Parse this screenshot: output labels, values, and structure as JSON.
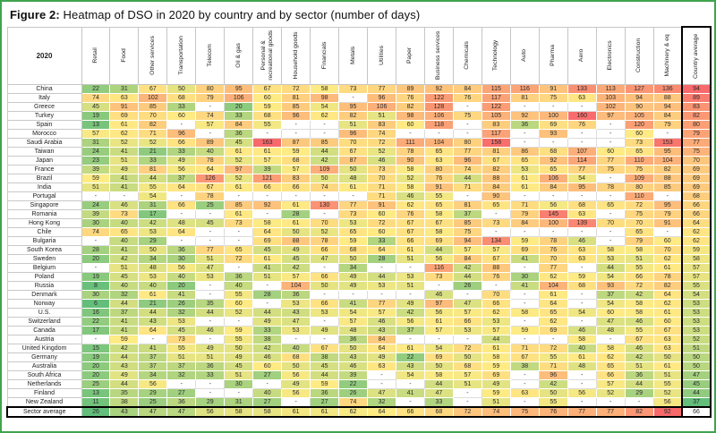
{
  "title": {
    "prefix": "Figure 2:",
    "text": " Heatmap of DSO in 2020 by country and by sector (number of days)"
  },
  "chart_data": {
    "type": "heatmap",
    "title": "Heatmap of DSO in 2020 by country and by sector (number of days)",
    "corner_label": "2020",
    "missing_marker": "-",
    "columns": [
      "Retail",
      "Food",
      "Other services",
      "Transportation",
      "Telecom",
      "Oil & gas",
      "Personal & recreational goods",
      "Household goods",
      "Financials",
      "Metals",
      "Utilities",
      "Paper",
      "Business services",
      "Chemicals",
      "Technology",
      "Auto",
      "Pharma",
      "Aero",
      "Electronics",
      "Construction",
      "Machinery & eq"
    ],
    "country_average_column": "Country average",
    "rows": [
      {
        "country": "China",
        "values": [
          22,
          31,
          67,
          50,
          80,
          95,
          67,
          72,
          58,
          73,
          77,
          89,
          92,
          84,
          115,
          116,
          91,
          133,
          113,
          127,
          136
        ],
        "country_average": 94
      },
      {
        "country": "Italy",
        "values": [
          74,
          63,
          102,
          68,
          79,
          106,
          60,
          81,
          98,
          null,
          96,
          76,
          122,
          76,
          117,
          81,
          75,
          63,
          103,
          94,
          88
        ],
        "country_average": 89
      },
      {
        "country": "Greece",
        "values": [
          45,
          91,
          85,
          33,
          null,
          20,
          59,
          85,
          54,
          95,
          106,
          82,
          128,
          null,
          122,
          null,
          null,
          null,
          102,
          90,
          94
        ],
        "country_average": 83
      },
      {
        "country": "Turkey",
        "values": [
          19,
          69,
          70,
          60,
          74,
          33,
          68,
          96,
          62,
          82,
          51,
          98,
          106,
          75,
          105,
          92,
          100,
          160,
          97,
          105,
          84
        ],
        "country_average": 82
      },
      {
        "country": "Spain",
        "values": [
          13,
          61,
          82,
          null,
          57,
          84,
          55,
          null,
          null,
          51,
          83,
          60,
          118,
          null,
          83,
          36,
          69,
          76,
          null,
          120,
          79
        ],
        "country_average": 80
      },
      {
        "country": "Morocco",
        "values": [
          57,
          62,
          71,
          96,
          null,
          36,
          null,
          null,
          null,
          96,
          74,
          null,
          null,
          null,
          117,
          null,
          93,
          null,
          null,
          60,
          null
        ],
        "country_average": 79
      },
      {
        "country": "Saudi Arabia",
        "values": [
          31,
          52,
          52,
          66,
          89,
          45,
          163,
          87,
          85,
          70,
          72,
          111,
          104,
          80,
          158,
          null,
          null,
          null,
          null,
          73,
          153
        ],
        "country_average": 77
      },
      {
        "country": "Taiwan",
        "values": [
          24,
          41,
          21,
          33,
          40,
          61,
          61,
          59,
          44,
          67,
          52,
          78,
          65,
          77,
          81,
          86,
          68,
          107,
          60,
          65,
          95
        ],
        "country_average": 75
      },
      {
        "country": "Japan",
        "values": [
          23,
          51,
          33,
          49,
          78,
          52,
          57,
          68,
          42,
          87,
          46,
          90,
          63,
          96,
          67,
          65,
          92,
          114,
          77,
          110,
          104
        ],
        "country_average": 70
      },
      {
        "country": "France",
        "values": [
          39,
          49,
          81,
          56,
          64,
          97,
          39,
          57,
          109,
          50,
          73,
          58,
          80,
          74,
          82,
          53,
          65,
          77,
          75,
          75,
          82
        ],
        "country_average": 69
      },
      {
        "country": "Brazil",
        "values": [
          59,
          41,
          44,
          37,
          126,
          52,
          121,
          83,
          50,
          48,
          70,
          52,
          76,
          44,
          88,
          61,
          106,
          54,
          null,
          109,
          88
        ],
        "country_average": 69
      },
      {
        "country": "India",
        "values": [
          51,
          41,
          55,
          64,
          67,
          61,
          66,
          66,
          74,
          61,
          71,
          58,
          91,
          71,
          84,
          61,
          84,
          95,
          78,
          80,
          85
        ],
        "country_average": 69
      },
      {
        "country": "Portugal",
        "values": [
          null,
          null,
          54,
          null,
          78,
          null,
          null,
          null,
          null,
          null,
          71,
          46,
          55,
          null,
          90,
          null,
          null,
          null,
          null,
          110,
          null
        ],
        "country_average": 68
      },
      {
        "country": "Singapore",
        "values": [
          24,
          46,
          31,
          66,
          25,
          85,
          92,
          61,
          130,
          77,
          91,
          62,
          65,
          81,
          65,
          71,
          56,
          68,
          65,
          72,
          95
        ],
        "country_average": 66
      },
      {
        "country": "Romania",
        "values": [
          39,
          73,
          17,
          null,
          null,
          61,
          null,
          28,
          null,
          73,
          60,
          76,
          58,
          37,
          null,
          79,
          145,
          63,
          null,
          75,
          79
        ],
        "country_average": 66
      },
      {
        "country": "Hong Kong",
        "values": [
          30,
          40,
          42,
          48,
          45,
          73,
          58,
          61,
          70,
          53,
          72,
          67,
          67,
          85,
          73,
          84,
          100,
          139,
          70,
          70,
          91
        ],
        "country_average": 64
      },
      {
        "country": "Chile",
        "values": [
          74,
          65,
          53,
          64,
          null,
          null,
          64,
          50,
          52,
          65,
          60,
          67,
          58,
          75,
          null,
          null,
          null,
          null,
          null,
          65,
          null
        ],
        "country_average": 62
      },
      {
        "country": "Bulgaria",
        "values": [
          null,
          40,
          29,
          null,
          null,
          null,
          69,
          88,
          78,
          59,
          33,
          66,
          69,
          94,
          134,
          59,
          78,
          46,
          null,
          79,
          60
        ],
        "country_average": 62
      },
      {
        "country": "South Korea",
        "values": [
          28,
          41,
          50,
          36,
          77,
          65,
          45,
          49,
          66,
          68,
          64,
          61,
          44,
          57,
          57,
          69,
          76,
          63,
          58,
          58,
          70
        ],
        "country_average": 59
      },
      {
        "country": "Sweden",
        "values": [
          20,
          42,
          34,
          30,
          51,
          72,
          61,
          45,
          47,
          50,
          28,
          51,
          56,
          84,
          67,
          41,
          70,
          63,
          53,
          51,
          62
        ],
        "country_average": 58
      },
      {
        "country": "Belgium",
        "values": [
          null,
          51,
          48,
          56,
          47,
          null,
          41,
          42,
          null,
          34,
          null,
          null,
          116,
          42,
          88,
          null,
          77,
          null,
          44,
          55,
          61
        ],
        "country_average": 57
      },
      {
        "country": "Poland",
        "values": [
          19,
          45,
          53,
          40,
          53,
          36,
          51,
          57,
          66,
          49,
          44,
          53,
          73,
          44,
          76,
          30,
          62,
          59,
          54,
          66,
          78
        ],
        "country_average": 57
      },
      {
        "country": "Russia",
        "values": [
          8,
          40,
          40,
          20,
          null,
          40,
          null,
          104,
          50,
          49,
          53,
          51,
          null,
          26,
          null,
          41,
          104,
          68,
          93,
          72,
          82
        ],
        "country_average": 55
      },
      {
        "country": "Denmark",
        "values": [
          30,
          32,
          61,
          41,
          null,
          55,
          28,
          36,
          null,
          null,
          null,
          null,
          46,
          null,
          70,
          null,
          61,
          null,
          37,
          42,
          64
        ],
        "country_average": 54
      },
      {
        "country": "Norway",
        "values": [
          6,
          44,
          21,
          26,
          35,
          60,
          null,
          53,
          66,
          41,
          77,
          49,
          97,
          47,
          66,
          null,
          64,
          null,
          54,
          58,
          62
        ],
        "country_average": 53
      },
      {
        "country": "U.S.",
        "values": [
          16,
          37,
          44,
          32,
          44,
          52,
          44,
          43,
          53,
          54,
          57,
          42,
          56,
          57,
          62,
          58,
          65,
          54,
          60,
          58,
          61
        ],
        "country_average": 53
      },
      {
        "country": "Switzerland",
        "values": [
          22,
          41,
          43,
          53,
          null,
          null,
          49,
          47,
          null,
          57,
          46,
          56,
          61,
          66,
          53,
          null,
          62,
          null,
          47,
          46,
          60
        ],
        "country_average": 53
      },
      {
        "country": "Canada",
        "values": [
          17,
          41,
          64,
          45,
          46,
          59,
          33,
          53,
          49,
          48,
          43,
          37,
          57,
          53,
          57,
          59,
          69,
          46,
          48,
          55,
          67
        ],
        "country_average": 53
      },
      {
        "country": "Austria",
        "values": [
          null,
          59,
          null,
          73,
          null,
          55,
          38,
          null,
          null,
          36,
          84,
          null,
          null,
          null,
          44,
          null,
          null,
          58,
          null,
          67,
          63
        ],
        "country_average": 52
      },
      {
        "country": "United Kingdom",
        "values": [
          15,
          42,
          41,
          55,
          49,
          50,
          42,
          40,
          67,
          50,
          64,
          61,
          54,
          72,
          61,
          71,
          72,
          40,
          58,
          46,
          63
        ],
        "country_average": 51
      },
      {
        "country": "Germany",
        "values": [
          19,
          44,
          37,
          51,
          51,
          49,
          46,
          68,
          38,
          43,
          49,
          22,
          69,
          50,
          58,
          67,
          55,
          61,
          62,
          42,
          50
        ],
        "country_average": 50
      },
      {
        "country": "Australia",
        "values": [
          20,
          43,
          37,
          37,
          36,
          45,
          60,
          50,
          45,
          46,
          63,
          43,
          50,
          68,
          59,
          38,
          71,
          48,
          65,
          51,
          61
        ],
        "country_average": 50
      },
      {
        "country": "South Africa",
        "values": [
          20,
          49,
          34,
          32,
          33,
          51,
          27,
          56,
          44,
          39,
          null,
          54,
          58,
          57,
          69,
          null,
          96,
          null,
          66,
          36,
          51
        ],
        "country_average": 47
      },
      {
        "country": "Netherlands",
        "values": [
          25,
          44,
          56,
          null,
          null,
          30,
          null,
          49,
          59,
          22,
          null,
          null,
          44,
          51,
          49,
          null,
          42,
          null,
          57,
          44,
          55
        ],
        "country_average": 45
      },
      {
        "country": "Finland",
        "values": [
          13,
          35,
          29,
          27,
          null,
          null,
          40,
          56,
          36,
          26,
          47,
          41,
          47,
          null,
          59,
          63,
          50,
          56,
          52,
          29,
          52
        ],
        "country_average": 44
      },
      {
        "country": "New Zealand",
        "values": [
          11,
          38,
          25,
          36,
          29,
          31,
          27,
          null,
          27,
          74,
          32,
          null,
          33,
          null,
          51,
          null,
          55,
          null,
          null,
          null,
          56
        ],
        "country_average": 37
      }
    ],
    "sector_average_row": {
      "label": "Sector average",
      "values": [
        26,
        43,
        47,
        47,
        56,
        58,
        58,
        61,
        61,
        62,
        64,
        66,
        68,
        72,
        74,
        75,
        76,
        77,
        77,
        82,
        92
      ],
      "overall_average": 66
    },
    "color_scale": {
      "min_color": "#63BE7B",
      "mid_color": "#FFEB84",
      "max_color": "#F8696B",
      "description": "green (low DSO) to yellow to red (high DSO); separate scales for matrix, country-average column and sector-average row"
    },
    "frame_color": "#3FA44E"
  }
}
